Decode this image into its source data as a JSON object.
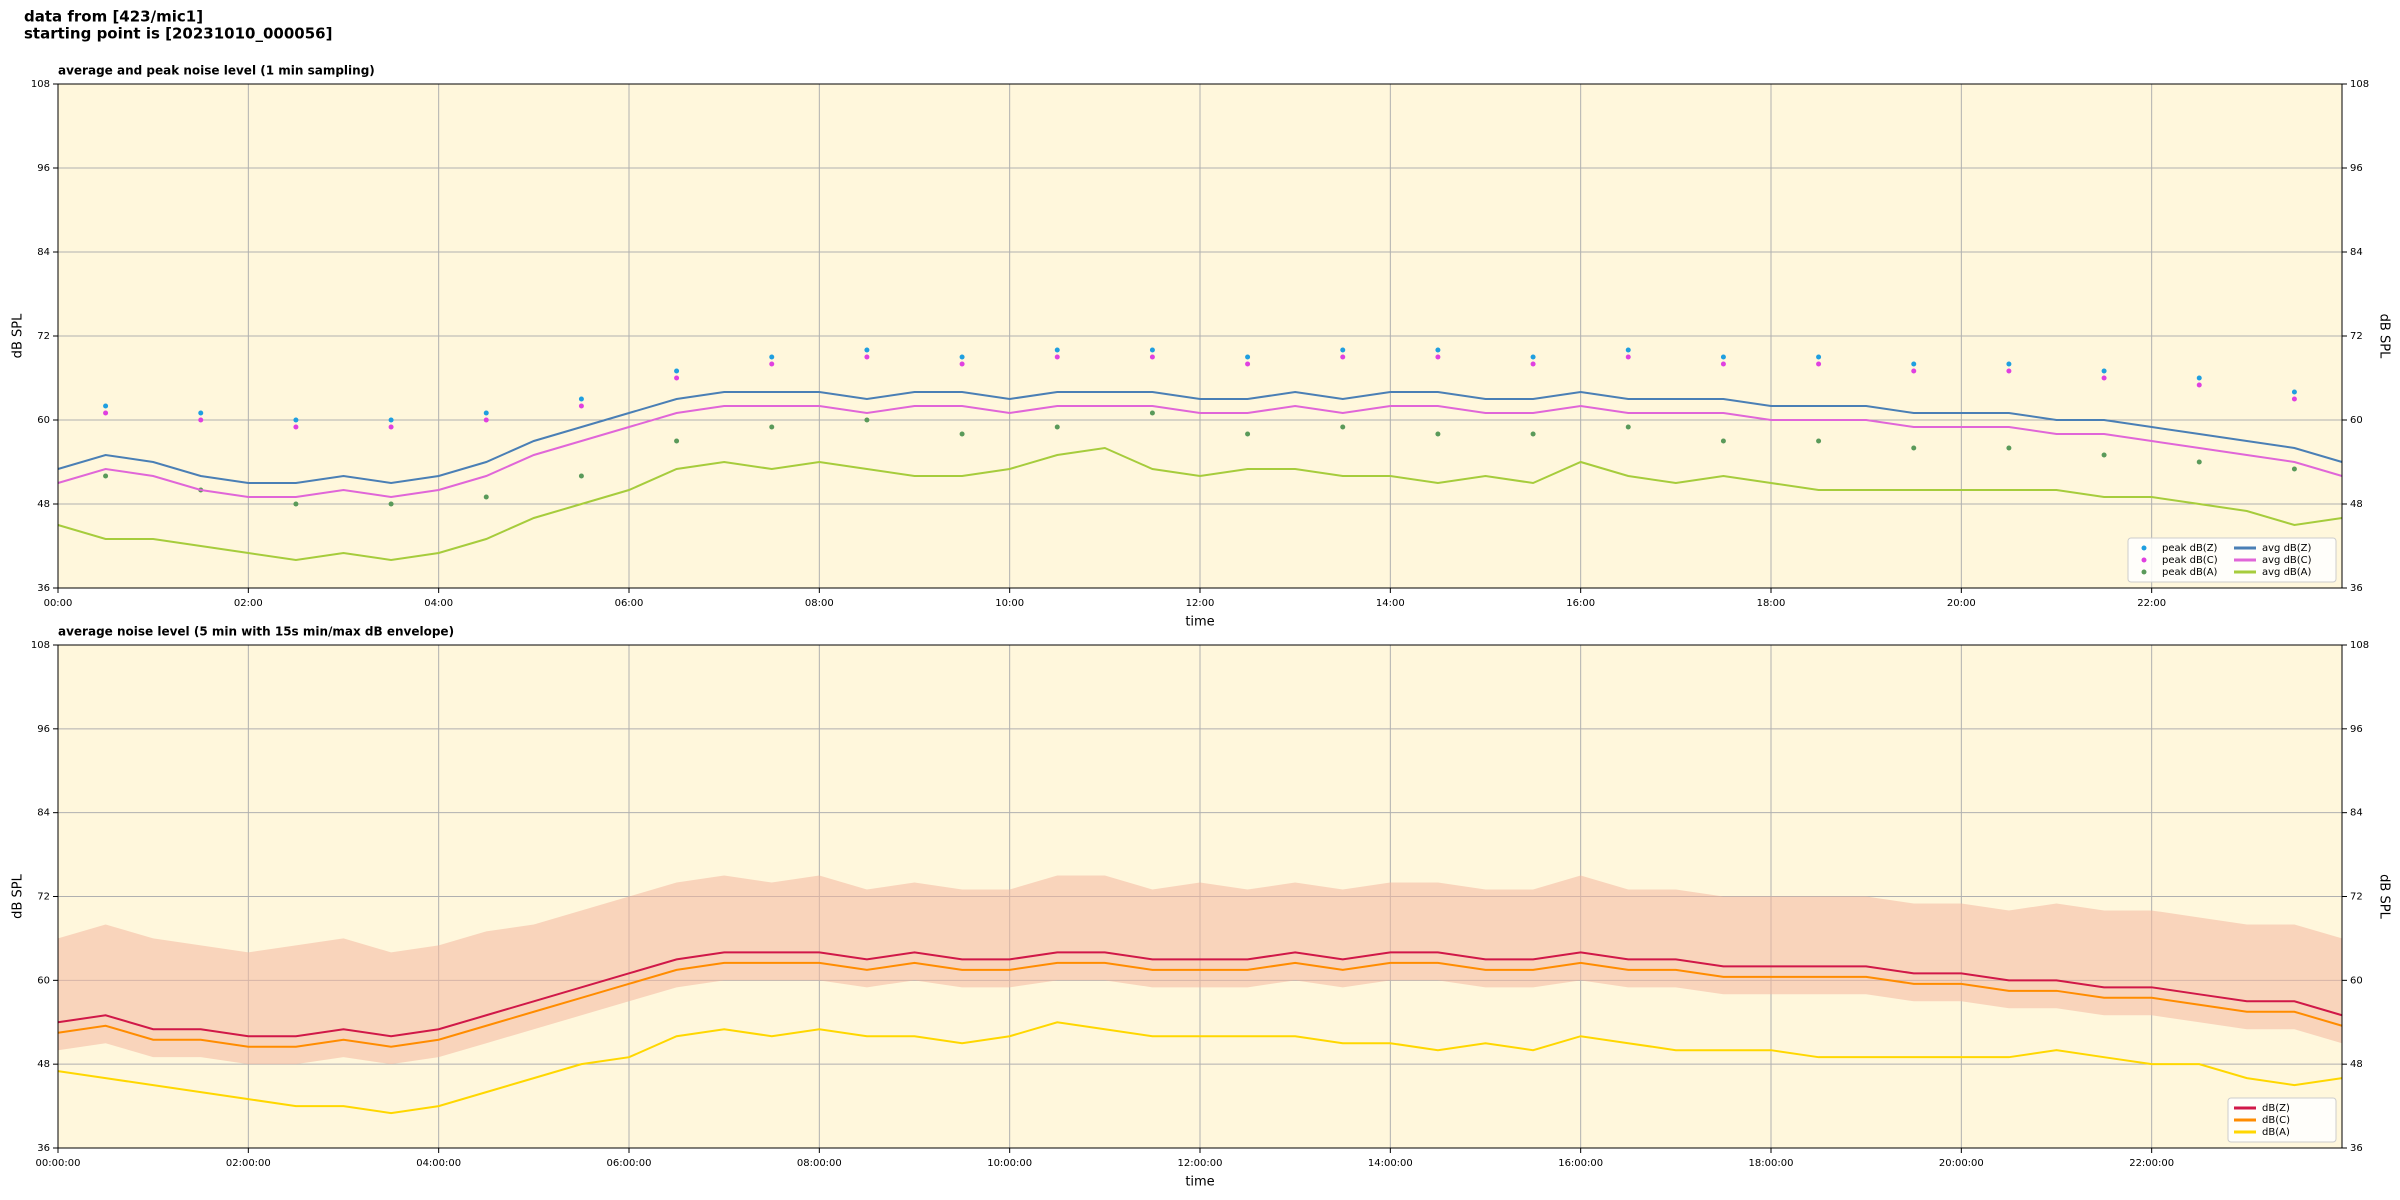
{
  "header": [
    "data from [423/mic1]",
    "starting point is [20231010_000056]"
  ],
  "chart_data": [
    {
      "type": "line",
      "title": "average and peak noise level (1 min sampling)",
      "xlabel": "time",
      "ylabel": "dB SPL",
      "xlim": [
        0,
        24
      ],
      "ylim": [
        36,
        108
      ],
      "xticks": [
        {
          "value": 0,
          "label": "00:00"
        },
        {
          "value": 2,
          "label": "02:00"
        },
        {
          "value": 4,
          "label": "04:00"
        },
        {
          "value": 6,
          "label": "06:00"
        },
        {
          "value": 8,
          "label": "08:00"
        },
        {
          "value": 10,
          "label": "10:00"
        },
        {
          "value": 12,
          "label": "12:00"
        },
        {
          "value": 14,
          "label": "14:00"
        },
        {
          "value": 16,
          "label": "16:00"
        },
        {
          "value": 18,
          "label": "18:00"
        },
        {
          "value": 20,
          "label": "20:00"
        },
        {
          "value": 22,
          "label": "22:00"
        }
      ],
      "yticks": [
        36,
        48,
        60,
        72,
        84,
        96,
        108
      ],
      "grid": true,
      "legend": "lower right",
      "legend_columns": 2,
      "background": "#fff7dc",
      "x": [
        0,
        0.5,
        1,
        1.5,
        2,
        2.5,
        3,
        3.5,
        4,
        4.5,
        5,
        5.5,
        6,
        6.5,
        7,
        7.5,
        8,
        8.5,
        9,
        9.5,
        10,
        10.5,
        11,
        11.5,
        12,
        12.5,
        13,
        13.5,
        14,
        14.5,
        15,
        15.5,
        16,
        16.5,
        17,
        17.5,
        18,
        18.5,
        19,
        19.5,
        20,
        20.5,
        21,
        21.5,
        22,
        22.5,
        23,
        23.5,
        24
      ],
      "series": [
        {
          "name": "peak dB(Z)",
          "color": "#1f9fe0",
          "style": "points",
          "x": [
            0.5,
            1.5,
            2.5,
            3.5,
            4.5,
            5.5,
            6.5,
            7.5,
            8.5,
            9.5,
            10.5,
            11.5,
            12.5,
            13.5,
            14.5,
            15.5,
            16.5,
            17.5,
            18.5,
            19.5,
            20.5,
            21.5,
            22.5,
            23.5
          ],
          "values": [
            62,
            61,
            60,
            60,
            61,
            63,
            67,
            69,
            70,
            69,
            70,
            70,
            69,
            70,
            70,
            69,
            70,
            69,
            69,
            68,
            68,
            67,
            66,
            64
          ]
        },
        {
          "name": "peak dB(C)",
          "color": "#e040e0",
          "style": "points",
          "x": [
            0.5,
            1.5,
            2.5,
            3.5,
            4.5,
            5.5,
            6.5,
            7.5,
            8.5,
            9.5,
            10.5,
            11.5,
            12.5,
            13.5,
            14.5,
            15.5,
            16.5,
            17.5,
            18.5,
            19.5,
            20.5,
            21.5,
            22.5,
            23.5
          ],
          "values": [
            61,
            60,
            59,
            59,
            60,
            62,
            66,
            68,
            69,
            68,
            69,
            69,
            68,
            69,
            69,
            68,
            69,
            68,
            68,
            67,
            67,
            66,
            65,
            63
          ]
        },
        {
          "name": "peak dB(A)",
          "color": "#5a9a5a",
          "style": "points",
          "x": [
            0.5,
            1.5,
            2.5,
            3.5,
            4.5,
            5.5,
            6.5,
            7.5,
            8.5,
            9.5,
            10.5,
            11.5,
            12.5,
            13.5,
            14.5,
            15.5,
            16.5,
            17.5,
            18.5,
            19.5,
            20.5,
            21.5,
            22.5,
            23.5
          ],
          "values": [
            52,
            50,
            48,
            48,
            49,
            52,
            57,
            59,
            60,
            58,
            59,
            61,
            58,
            59,
            58,
            58,
            59,
            57,
            57,
            56,
            56,
            55,
            54,
            53
          ]
        },
        {
          "name": "avg dB(Z)",
          "color": "#4a7fb5",
          "style": "line",
          "values": [
            53,
            55,
            54,
            52,
            51,
            51,
            52,
            51,
            52,
            54,
            57,
            59,
            61,
            63,
            64,
            64,
            64,
            63,
            64,
            64,
            63,
            64,
            64,
            64,
            63,
            63,
            64,
            63,
            64,
            64,
            63,
            63,
            64,
            63,
            63,
            63,
            62,
            62,
            62,
            61,
            61,
            61,
            60,
            60,
            59,
            58,
            57,
            56,
            54
          ]
        },
        {
          "name": "avg dB(C)",
          "color": "#e066d8",
          "style": "line",
          "values": [
            51,
            53,
            52,
            50,
            49,
            49,
            50,
            49,
            50,
            52,
            55,
            57,
            59,
            61,
            62,
            62,
            62,
            61,
            62,
            62,
            61,
            62,
            62,
            62,
            61,
            61,
            62,
            61,
            62,
            62,
            61,
            61,
            62,
            61,
            61,
            61,
            60,
            60,
            60,
            59,
            59,
            59,
            58,
            58,
            57,
            56,
            55,
            54,
            52
          ]
        },
        {
          "name": "avg dB(A)",
          "color": "#a6cc3c",
          "style": "line",
          "values": [
            45,
            43,
            43,
            42,
            41,
            40,
            41,
            40,
            41,
            43,
            46,
            48,
            50,
            53,
            54,
            53,
            54,
            53,
            52,
            52,
            53,
            55,
            56,
            53,
            52,
            53,
            53,
            52,
            52,
            51,
            52,
            51,
            54,
            52,
            51,
            52,
            51,
            50,
            50,
            50,
            50,
            50,
            50,
            49,
            49,
            48,
            47,
            45,
            46
          ]
        }
      ]
    },
    {
      "type": "line",
      "title": "average noise level (5 min with 15s min/max dB envelope)",
      "xlabel": "time",
      "ylabel": "dB SPL",
      "xlim": [
        0,
        24
      ],
      "ylim": [
        36,
        108
      ],
      "xticks": [
        {
          "value": 0,
          "label": "00:00:00"
        },
        {
          "value": 2,
          "label": "02:00:00"
        },
        {
          "value": 4,
          "label": "04:00:00"
        },
        {
          "value": 6,
          "label": "06:00:00"
        },
        {
          "value": 8,
          "label": "08:00:00"
        },
        {
          "value": 10,
          "label": "10:00:00"
        },
        {
          "value": 12,
          "label": "12:00:00"
        },
        {
          "value": 14,
          "label": "14:00:00"
        },
        {
          "value": 16,
          "label": "16:00:00"
        },
        {
          "value": 18,
          "label": "18:00:00"
        },
        {
          "value": 20,
          "label": "20:00:00"
        },
        {
          "value": 22,
          "label": "22:00:00"
        }
      ],
      "yticks": [
        36,
        48,
        60,
        72,
        84,
        96,
        108
      ],
      "grid": true,
      "legend": "lower right",
      "legend_columns": 1,
      "background": "#fff7dc",
      "x": [
        0,
        0.5,
        1,
        1.5,
        2,
        2.5,
        3,
        3.5,
        4,
        4.5,
        5,
        5.5,
        6,
        6.5,
        7,
        7.5,
        8,
        8.5,
        9,
        9.5,
        10,
        10.5,
        11,
        11.5,
        12,
        12.5,
        13,
        13.5,
        14,
        14.5,
        15,
        15.5,
        16,
        16.5,
        17,
        17.5,
        18,
        18.5,
        19,
        19.5,
        20,
        20.5,
        21,
        21.5,
        22,
        22.5,
        23,
        23.5,
        24
      ],
      "envelope": {
        "color": "#f4b8a0",
        "lower": [
          50,
          51,
          49,
          49,
          48,
          48,
          49,
          48,
          49,
          51,
          53,
          55,
          57,
          59,
          60,
          60,
          60,
          59,
          60,
          59,
          59,
          60,
          60,
          59,
          59,
          59,
          60,
          59,
          60,
          60,
          59,
          59,
          60,
          59,
          59,
          58,
          58,
          58,
          58,
          57,
          57,
          56,
          56,
          55,
          55,
          54,
          53,
          53,
          51
        ],
        "upper": [
          66,
          68,
          66,
          65,
          64,
          65,
          66,
          64,
          65,
          67,
          68,
          70,
          72,
          74,
          75,
          74,
          75,
          73,
          74,
          73,
          73,
          75,
          75,
          73,
          74,
          73,
          74,
          73,
          74,
          74,
          73,
          73,
          75,
          73,
          73,
          72,
          72,
          72,
          72,
          71,
          71,
          70,
          71,
          70,
          70,
          69,
          68,
          68,
          66
        ]
      },
      "series": [
        {
          "name": "dB(Z)",
          "color": "#d01848",
          "style": "line",
          "values": [
            54,
            55,
            53,
            53,
            52,
            52,
            53,
            52,
            53,
            55,
            57,
            59,
            61,
            63,
            64,
            64,
            64,
            63,
            64,
            63,
            63,
            64,
            64,
            63,
            63,
            63,
            64,
            63,
            64,
            64,
            63,
            63,
            64,
            63,
            63,
            62,
            62,
            62,
            62,
            61,
            61,
            60,
            60,
            59,
            59,
            58,
            57,
            57,
            55
          ]
        },
        {
          "name": "dB(C)",
          "color": "#ff8c00",
          "style": "line",
          "values": [
            52.5,
            53.5,
            51.5,
            51.5,
            50.5,
            50.5,
            51.5,
            50.5,
            51.5,
            53.5,
            55.5,
            57.5,
            59.5,
            61.5,
            62.5,
            62.5,
            62.5,
            61.5,
            62.5,
            61.5,
            61.5,
            62.5,
            62.5,
            61.5,
            61.5,
            61.5,
            62.5,
            61.5,
            62.5,
            62.5,
            61.5,
            61.5,
            62.5,
            61.5,
            61.5,
            60.5,
            60.5,
            60.5,
            60.5,
            59.5,
            59.5,
            58.5,
            58.5,
            57.5,
            57.5,
            56.5,
            55.5,
            55.5,
            53.5
          ]
        },
        {
          "name": "dB(A)",
          "color": "#ffd700",
          "style": "line",
          "values": [
            47,
            46,
            45,
            44,
            43,
            42,
            42,
            41,
            42,
            44,
            46,
            48,
            49,
            52,
            53,
            52,
            53,
            52,
            52,
            51,
            52,
            54,
            53,
            52,
            52,
            52,
            52,
            51,
            51,
            50,
            51,
            50,
            52,
            51,
            50,
            50,
            50,
            49,
            49,
            49,
            49,
            49,
            50,
            49,
            48,
            48,
            46,
            45,
            46
          ]
        }
      ]
    }
  ]
}
